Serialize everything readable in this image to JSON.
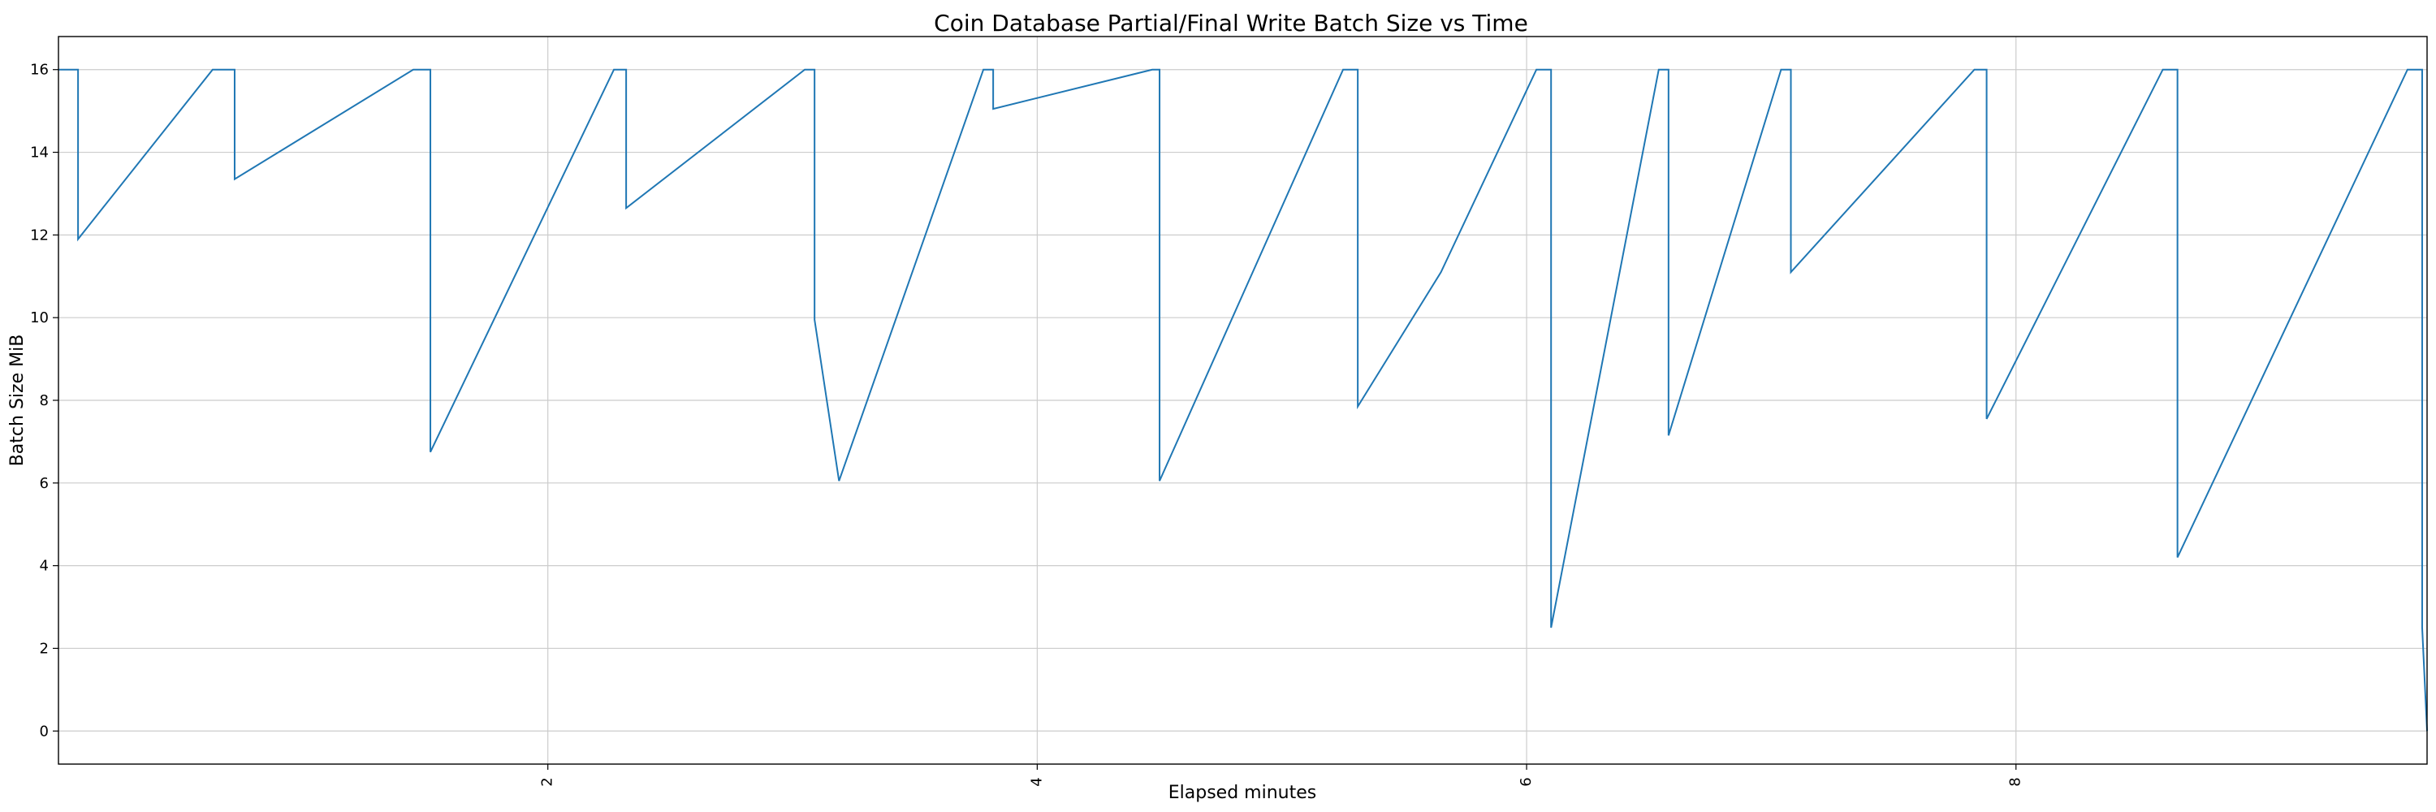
{
  "chart_data": {
    "type": "line",
    "title": "Coin Database Partial/Final Write Batch Size vs Time",
    "xlabel": "Elapsed minutes",
    "ylabel": "Batch Size MiB",
    "xlim": [
      0.0,
      9.68
    ],
    "ylim": [
      -0.8,
      16.8
    ],
    "x_ticks": [
      2,
      4,
      6,
      8
    ],
    "y_ticks": [
      0,
      2,
      4,
      6,
      8,
      10,
      12,
      14,
      16
    ],
    "grid": true,
    "line_color": "#1f77b4",
    "series": [
      {
        "x": [
          0.0,
          0.08,
          0.08,
          0.63,
          0.72,
          0.72,
          1.45,
          1.52,
          1.52,
          2.27,
          2.32,
          2.32,
          3.05,
          3.09,
          3.09,
          3.19,
          3.78,
          3.82,
          3.82,
          4.47,
          4.5,
          4.5,
          5.25,
          5.31,
          5.31,
          5.65,
          6.04,
          6.1,
          6.1,
          6.54,
          6.58,
          6.58,
          7.04,
          7.08,
          7.08,
          7.83,
          7.88,
          7.88,
          8.6,
          8.66,
          8.66,
          9.6,
          9.66,
          9.66,
          9.68
        ],
        "y": [
          16.0,
          16.0,
          11.9,
          16.0,
          16.0,
          13.35,
          16.0,
          16.0,
          6.75,
          16.0,
          16.0,
          12.65,
          16.0,
          16.0,
          9.95,
          6.05,
          16.0,
          16.0,
          15.05,
          16.0,
          16.0,
          6.05,
          16.0,
          16.0,
          7.85,
          11.1,
          16.0,
          16.0,
          2.5,
          16.0,
          16.0,
          7.15,
          16.0,
          16.0,
          11.1,
          16.0,
          16.0,
          7.55,
          16.0,
          16.0,
          4.2,
          16.0,
          16.0,
          2.5,
          0.0
        ]
      }
    ]
  }
}
